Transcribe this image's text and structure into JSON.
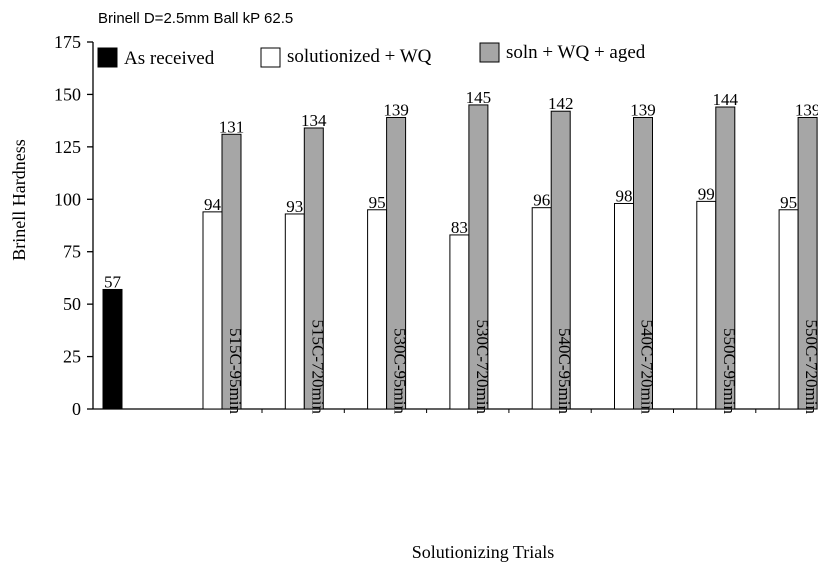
{
  "chart_data": {
    "type": "bar",
    "title": "Brinell D=2.5mm Ball kP 62.5",
    "xlabel": "Solutionizing Trials",
    "ylabel": "Brinell Hardness",
    "ylim": [
      0,
      175
    ],
    "yticks": [
      0,
      25,
      50,
      75,
      100,
      125,
      150,
      175
    ],
    "grid": false,
    "legend_position": "top",
    "as_received": {
      "name": "As received",
      "value": 57,
      "color": "#000000"
    },
    "categories": [
      "515C-95min",
      "515C-720min",
      "530C-95min",
      "530C-720min",
      "540C-95min",
      "540C-720min",
      "550C-95min",
      "550C-720min"
    ],
    "series": [
      {
        "name": "solutionized + WQ",
        "color": "#ffffff",
        "values": [
          94,
          93,
          95,
          83,
          96,
          98,
          99,
          95
        ]
      },
      {
        "name": "soln + WQ + aged",
        "color": "#a6a6a6",
        "values": [
          131,
          134,
          139,
          145,
          142,
          139,
          144,
          139
        ]
      }
    ]
  }
}
